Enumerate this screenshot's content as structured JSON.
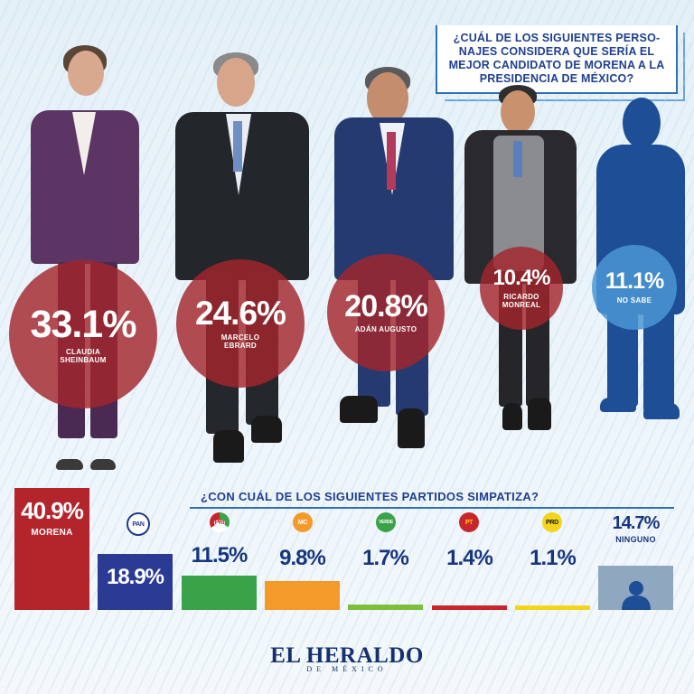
{
  "question_1": "¿CUÁL DE LOS SIGUIENTES PERSO- NAJES CONSIDERA QUE SERÍA EL MEJOR CANDIDATO DE MORENA A LA PRESIDENCIA DE MÉXICO?",
  "question_2": "¿CON CUÁL DE LOS SIGUIENTES PARTIDOS SIMPATIZA?",
  "brand": {
    "name": "EL HERALDO",
    "sub": "DE MÉXICO"
  },
  "chart_data": [
    {
      "type": "bubble",
      "title": "¿CUÁL DE LOS SIGUIENTES PERSO- NAJES CONSIDERA QUE SERÍA EL MEJOR CANDIDATO DE MORENA A LA PRESIDENCIA DE MÉXICO?",
      "categories": [
        "CLAUDIA SHEINBAUM",
        "MARCELO EBRARD",
        "ADÁN AUGUSTO",
        "RICARDO MONREAL",
        "NO SABE"
      ],
      "values": [
        33.1,
        24.6,
        20.8,
        10.4,
        11.1
      ],
      "labels": [
        "33.1%",
        "24.6%",
        "20.8%",
        "10.4%",
        "11.1%"
      ],
      "colors": [
        "#a4262c",
        "#a4262c",
        "#a4262c",
        "#a4262c",
        "#4a96d4"
      ]
    },
    {
      "type": "bar",
      "title": "¿CON CUÁL DE LOS SIGUIENTES PARTIDOS SIMPATIZA?",
      "categories": [
        "MORENA",
        "PAN",
        "PRI",
        "MC",
        "PVEM",
        "PT",
        "PRD",
        "NINGUNO"
      ],
      "values": [
        40.9,
        18.9,
        11.5,
        9.8,
        1.7,
        1.4,
        1.1,
        14.7
      ],
      "labels": [
        "40.9%",
        "18.9%",
        "11.5%",
        "9.8%",
        "1.7%",
        "1.4%",
        "1.1%",
        "14.7%"
      ],
      "colors": [
        "#b3242b",
        "#2b3a92",
        "#3aa34a",
        "#f39a2a",
        "#7cbf3f",
        "#c8262c",
        "#f4d51a",
        "#8fa8c0"
      ]
    }
  ],
  "logos": [
    "PAN",
    "PRI",
    "MC",
    "VERDE",
    "PT",
    "PRD"
  ]
}
